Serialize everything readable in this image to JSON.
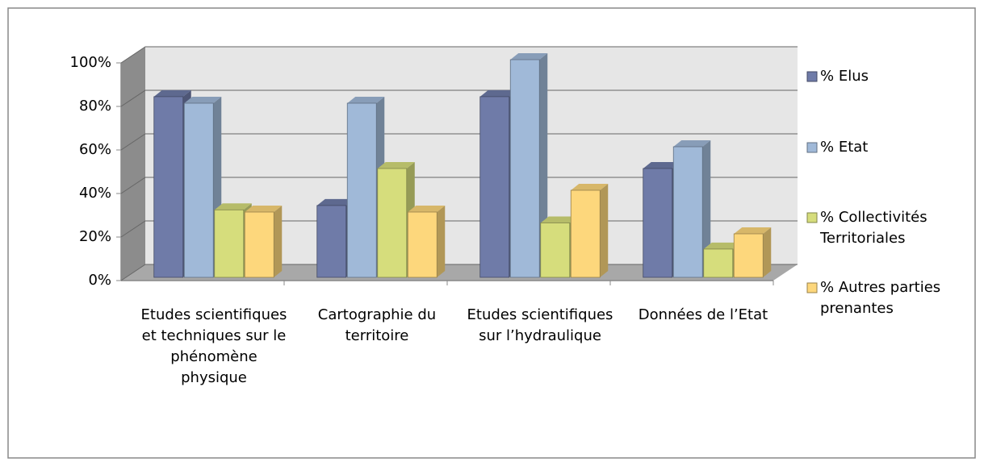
{
  "chart_data": {
    "type": "bar3d",
    "categories": [
      "Etudes scientifiques et techniques sur le phénomène physique",
      "Cartographie du territoire",
      "Etudes scientifiques sur l’hydraulique",
      "Données de l’Etat"
    ],
    "series": [
      {
        "name": "% Elus",
        "color": "#6f7ba8",
        "values": [
          83,
          33,
          83,
          50
        ]
      },
      {
        "name": "% Etat",
        "color": "#a0b9d8",
        "values": [
          80,
          80,
          100,
          60
        ]
      },
      {
        "name": "% Collectivités Territoriales",
        "color": "#d6dd7c",
        "values": [
          31,
          50,
          25,
          13
        ]
      },
      {
        "name": "% Autres parties prenantes",
        "color": "#fdd77c",
        "values": [
          30,
          30,
          40,
          20
        ]
      }
    ],
    "ylim": [
      0,
      100
    ],
    "yticks": [
      {
        "value": 0,
        "label": "0%"
      },
      {
        "value": 20,
        "label": "20%"
      },
      {
        "value": 40,
        "label": "40%"
      },
      {
        "value": 60,
        "label": "60%"
      },
      {
        "value": 80,
        "label": "80%"
      },
      {
        "value": 100,
        "label": "100%"
      }
    ],
    "grid": true,
    "legend": "right"
  }
}
